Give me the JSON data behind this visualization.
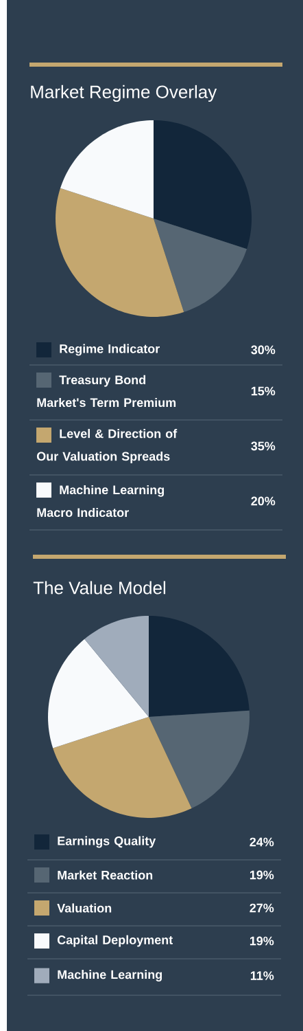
{
  "chart_data": [
    {
      "type": "pie",
      "title": "Market Regime Overlay",
      "categories": [
        "Regime Indicator",
        "Treasury Bond Market's Term Premium",
        "Level & Direction of Our Valuation Spreads",
        "Machine Learning Macro Indicator"
      ],
      "values": [
        30,
        15,
        35,
        20
      ],
      "value_labels": [
        "30%",
        "15%",
        "35%",
        "20%"
      ],
      "colors": [
        "#12263a",
        "#566673",
        "#c4a76f",
        "#f8fafc"
      ],
      "legend": "bottom"
    },
    {
      "type": "pie",
      "title": "The Value Model",
      "categories": [
        "Earnings Quality",
        "Market Reaction",
        "Valuation",
        "Capital Deployment",
        "Machine Learning"
      ],
      "values": [
        24,
        19,
        27,
        19,
        11
      ],
      "value_labels": [
        "24%",
        "19%",
        "27%",
        "19%",
        "11%"
      ],
      "colors": [
        "#12263a",
        "#566673",
        "#c4a76f",
        "#f8fafc",
        "#a0acbb"
      ],
      "legend": "bottom"
    }
  ]
}
